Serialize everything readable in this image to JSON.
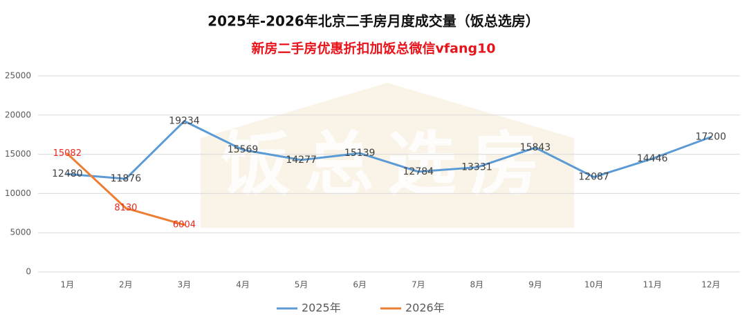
{
  "chart_data": {
    "type": "line",
    "title": "2025年-2026年北京二手房月度成交量（饭总选房）",
    "subtitle": "新房二手房优惠折扣加饭总微信vfang10",
    "watermark": "饭总选房",
    "categories": [
      "1月",
      "2月",
      "3月",
      "4月",
      "5月",
      "6月",
      "7月",
      "8月",
      "9月",
      "10月",
      "11月",
      "12月"
    ],
    "series": [
      {
        "name": "2025年",
        "color": "#5b9bd5",
        "label_color": "#404040",
        "values": [
          12480,
          11876,
          19234,
          15569,
          14277,
          15139,
          12784,
          13331,
          15843,
          12087,
          14446,
          17200
        ]
      },
      {
        "name": "2026年",
        "color": "#ed7d31",
        "label_color": "#e8281c",
        "values": [
          15082,
          8130,
          6004,
          null,
          null,
          null,
          null,
          null,
          null,
          null,
          null,
          null
        ]
      }
    ],
    "ylim": [
      0,
      25000
    ],
    "yticks": [
      0,
      5000,
      10000,
      15000,
      20000,
      25000
    ],
    "grid": true,
    "legend": "bottom"
  }
}
